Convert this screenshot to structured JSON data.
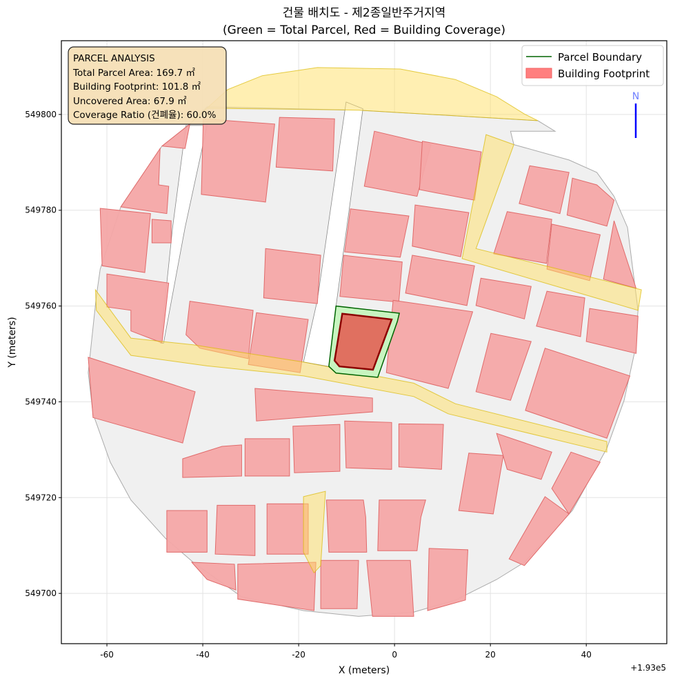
{
  "chart_data": {
    "type": "map",
    "title": "건물 배치도 - 제2종일반주거지역",
    "subtitle": "(Green = Total Parcel, Red = Building Coverage)",
    "xlabel": "X (meters)",
    "ylabel": "Y (meters)",
    "x_offset_label": "+1.93e5",
    "xlim": [
      -69.5,
      56.8
    ],
    "ylim": [
      549689.5,
      549815.4
    ],
    "xticks": [
      -60,
      -40,
      -20,
      0,
      20,
      40
    ],
    "yticks": [
      549700,
      549720,
      549740,
      549760,
      549780,
      549800
    ],
    "grid": true,
    "colors": {
      "parcel_fill": "#c8f5c0",
      "parcel_edge": "#006400",
      "building_fill": "#e07060",
      "building_edge": "#8b0000",
      "context_building": "#f4a6a6",
      "context_edge": "#e06a6a",
      "ground": "#f0f0f0",
      "road": "#fff1a8",
      "north_arrow": "#0000ff"
    },
    "legend": {
      "placement": "upper-right",
      "entries": [
        "Parcel Boundary",
        "Building Footprint"
      ]
    },
    "north_label": "N",
    "info_box": {
      "placement": "upper-left",
      "lines": [
        "PARCEL ANALYSIS",
        "Total Parcel Area: 169.7 ㎡",
        "Building Footprint: 101.8 ㎡",
        "Uncovered Area: 67.9 ㎡",
        "Coverage Ratio (건폐율): 60.0%"
      ]
    },
    "target_parcel": [
      [
        -12.2,
        549760.0
      ],
      [
        1.0,
        549758.5
      ],
      [
        0.6,
        549756.8
      ],
      [
        -3.5,
        549745.1
      ],
      [
        -12.2,
        549746.0
      ],
      [
        -13.7,
        549747.4
      ]
    ],
    "target_building": [
      [
        -10.9,
        549758.4
      ],
      [
        -0.6,
        549757.2
      ],
      [
        -4.5,
        549746.7
      ],
      [
        -11.5,
        549747.4
      ],
      [
        -12.5,
        549748.6
      ]
    ],
    "ground": [
      [
        -63.9,
        549746.1
      ],
      [
        -62.2,
        549762.0
      ],
      [
        -61.4,
        549767.7
      ],
      [
        -57.1,
        549780.7
      ],
      [
        -48.5,
        549793.4
      ],
      [
        -42.7,
        549798.0
      ],
      [
        -39.1,
        549801.6
      ],
      [
        -7.5,
        549800.9
      ],
      [
        29.9,
        549798.7
      ],
      [
        33.5,
        549796.5
      ],
      [
        24.2,
        549796.5
      ],
      [
        24.9,
        549793.7
      ],
      [
        36.4,
        549790.5
      ],
      [
        42.2,
        549787.9
      ],
      [
        45.8,
        549782.9
      ],
      [
        48.6,
        549776.4
      ],
      [
        50.8,
        549759.1
      ],
      [
        50.1,
        549750.4
      ],
      [
        47.9,
        549740.3
      ],
      [
        44.3,
        549730.3
      ],
      [
        37.1,
        549717.3
      ],
      [
        27.1,
        549706.5
      ],
      [
        21.3,
        549702.9
      ],
      [
        12.7,
        549698.6
      ],
      [
        4.0,
        549696.1
      ],
      [
        -7.5,
        549695.2
      ],
      [
        -19.0,
        549696.4
      ],
      [
        -31.9,
        549699.3
      ],
      [
        -42.0,
        549706.5
      ],
      [
        -47.8,
        549711.5
      ],
      [
        -55.0,
        549719.5
      ],
      [
        -59.3,
        549727.4
      ],
      [
        -62.9,
        549737.5
      ]
    ],
    "roads": [
      [
        [
          -42.0,
          549798.7
        ],
        [
          -34.8,
          549805.2
        ],
        [
          -27.6,
          549808.1
        ],
        [
          -16.1,
          549809.8
        ],
        [
          1.2,
          549809.5
        ],
        [
          12.7,
          549807.3
        ],
        [
          21.3,
          549803.7
        ],
        [
          27.1,
          549800.1
        ],
        [
          29.9,
          549798.7
        ],
        [
          -7.5,
          549800.9
        ],
        [
          -39.1,
          549801.3
        ]
      ],
      [
        [
          -62.4,
          549763.4
        ],
        [
          -55.0,
          549753.3
        ],
        [
          -42.0,
          549751.9
        ],
        [
          -19.0,
          549748.3
        ],
        [
          4.0,
          549743.9
        ],
        [
          12.7,
          549739.6
        ],
        [
          44.3,
          549731.7
        ],
        [
          44.3,
          549729.5
        ],
        [
          11.2,
          549737.5
        ],
        [
          4.0,
          549741.1
        ],
        [
          -19.0,
          549745.4
        ],
        [
          -39.1,
          549747.5
        ],
        [
          -55.0,
          549749.7
        ],
        [
          -62.2,
          549759.1
        ]
      ],
      [
        [
          19.1,
          549795.8
        ],
        [
          24.9,
          549793.7
        ],
        [
          17.0,
          549772.0
        ],
        [
          51.5,
          549763.4
        ],
        [
          50.8,
          549759.1
        ],
        [
          14.1,
          549769.9
        ]
      ],
      [
        [
          -19.0,
          549720.2
        ],
        [
          -14.4,
          549721.3
        ],
        [
          -15.4,
          549705.8
        ],
        [
          -16.8,
          549704.3
        ],
        [
          -19.0,
          549708.6
        ]
      ]
    ],
    "open_strips": [
      [
        [
          -43.5,
          549797.7
        ],
        [
          -39.1,
          549797.7
        ],
        [
          -43.7,
          549776.4
        ],
        [
          -48.2,
          549752.2
        ],
        [
          -48.8,
          549752.3
        ],
        [
          -46.3,
          549776.4
        ]
      ],
      [
        [
          -10.1,
          549802.6
        ],
        [
          -6.6,
          549801.2
        ],
        [
          -12.2,
          549760.0
        ],
        [
          -13.7,
          549747.4
        ],
        [
          -19.0,
          549748.3
        ],
        [
          -16.1,
          549761.2
        ]
      ]
    ],
    "buildings": [
      [
        [
          -39.9,
          549799.1
        ],
        [
          -25.0,
          549798.0
        ],
        [
          -26.9,
          549781.7
        ],
        [
          -40.3,
          549783.3
        ]
      ],
      [
        [
          -24.0,
          549799.4
        ],
        [
          -12.5,
          549799.1
        ],
        [
          -12.9,
          549788.2
        ],
        [
          -24.7,
          549789.0
        ]
      ],
      [
        [
          -4.2,
          549796.5
        ],
        [
          7.6,
          549793.7
        ],
        [
          4.7,
          549782.9
        ],
        [
          -6.3,
          549785.0
        ]
      ],
      [
        [
          5.8,
          549794.4
        ],
        [
          18.1,
          549792.2
        ],
        [
          16.7,
          549782.1
        ],
        [
          5.2,
          549784.3
        ]
      ],
      [
        [
          -9.2,
          549780.3
        ],
        [
          3.0,
          549778.8
        ],
        [
          1.2,
          549770.2
        ],
        [
          -10.4,
          549771.3
        ]
      ],
      [
        [
          4.3,
          549781.1
        ],
        [
          15.5,
          549779.5
        ],
        [
          13.8,
          549770.3
        ],
        [
          3.7,
          549772.5
        ]
      ],
      [
        [
          -26.9,
          549772.0
        ],
        [
          -15.4,
          549770.6
        ],
        [
          -16.1,
          549760.5
        ],
        [
          -27.3,
          549761.7
        ]
      ],
      [
        [
          -10.6,
          549770.6
        ],
        [
          1.6,
          549769.2
        ],
        [
          0.9,
          549760.8
        ],
        [
          -11.4,
          549762.0
        ]
      ],
      [
        [
          3.7,
          549770.6
        ],
        [
          16.7,
          549768.4
        ],
        [
          15.1,
          549760.1
        ],
        [
          2.3,
          549762.7
        ]
      ],
      [
        [
          -0.3,
          549761.2
        ],
        [
          16.3,
          549758.8
        ],
        [
          11.2,
          549742.8
        ],
        [
          -1.7,
          549746.1
        ]
      ],
      [
        [
          -42.7,
          549761.0
        ],
        [
          -29.5,
          549759.1
        ],
        [
          -30.5,
          549749.0
        ],
        [
          -40.6,
          549751.2
        ],
        [
          -43.5,
          549754.0
        ]
      ],
      [
        [
          -28.8,
          549758.6
        ],
        [
          -18.0,
          549757.2
        ],
        [
          -19.7,
          549746.1
        ],
        [
          -30.5,
          549747.8
        ]
      ],
      [
        [
          -60.0,
          549766.7
        ],
        [
          -47.1,
          549764.8
        ],
        [
          -48.5,
          549752.3
        ],
        [
          -55.0,
          549754.8
        ],
        [
          -55.0,
          549759.1
        ],
        [
          -60.0,
          549759.8
        ]
      ],
      [
        [
          -61.4,
          549780.4
        ],
        [
          -50.9,
          549779.3
        ],
        [
          -52.1,
          549767.0
        ],
        [
          -61.0,
          549768.4
        ]
      ],
      [
        [
          -50.6,
          549778.1
        ],
        [
          -46.6,
          549777.8
        ],
        [
          -46.6,
          549773.2
        ],
        [
          -50.6,
          549773.2
        ]
      ],
      [
        [
          -57.1,
          549780.7
        ],
        [
          -48.9,
          549792.9
        ],
        [
          -49.2,
          549785.3
        ],
        [
          -47.1,
          549785.0
        ],
        [
          -47.5,
          549779.3
        ]
      ],
      [
        [
          -63.9,
          549749.3
        ],
        [
          -41.6,
          549742.1
        ],
        [
          -44.2,
          549731.4
        ],
        [
          -62.9,
          549736.7
        ]
      ],
      [
        [
          -29.1,
          549742.8
        ],
        [
          -4.6,
          549740.8
        ],
        [
          -4.6,
          549737.9
        ],
        [
          -28.8,
          549736.0
        ]
      ],
      [
        [
          -21.2,
          549734.9
        ],
        [
          -11.4,
          549735.3
        ],
        [
          -11.4,
          549725.5
        ],
        [
          -20.9,
          549725.2
        ]
      ],
      [
        [
          -31.2,
          549732.3
        ],
        [
          -21.9,
          549732.3
        ],
        [
          -21.9,
          549724.5
        ],
        [
          -31.2,
          549724.5
        ]
      ],
      [
        [
          -10.4,
          549736.0
        ],
        [
          -0.6,
          549735.7
        ],
        [
          -0.6,
          549725.9
        ],
        [
          -10.1,
          549726.2
        ]
      ],
      [
        [
          0.9,
          549735.4
        ],
        [
          10.2,
          549735.3
        ],
        [
          9.8,
          549725.9
        ],
        [
          0.9,
          549726.4
        ]
      ],
      [
        [
          -44.2,
          549728.1
        ],
        [
          -36.0,
          549730.7
        ],
        [
          -31.9,
          549731.0
        ],
        [
          -31.9,
          549724.5
        ],
        [
          -44.2,
          549724.2
        ]
      ],
      [
        [
          -47.5,
          549717.3
        ],
        [
          -39.1,
          549717.3
        ],
        [
          -39.1,
          549708.6
        ],
        [
          -47.5,
          549708.6
        ]
      ],
      [
        [
          -37.0,
          549718.4
        ],
        [
          -29.1,
          549718.4
        ],
        [
          -29.1,
          549707.9
        ],
        [
          -37.4,
          549708.2
        ]
      ],
      [
        [
          -26.6,
          549718.7
        ],
        [
          -18.0,
          549718.7
        ],
        [
          -18.0,
          549708.2
        ],
        [
          -26.6,
          549708.2
        ]
      ],
      [
        [
          -14.2,
          549719.5
        ],
        [
          -6.5,
          549719.5
        ],
        [
          -6.0,
          549715.9
        ],
        [
          -5.8,
          549708.6
        ],
        [
          -13.7,
          549708.6
        ]
      ],
      [
        [
          -3.2,
          549719.5
        ],
        [
          6.5,
          549719.5
        ],
        [
          5.5,
          549715.9
        ],
        [
          4.7,
          549708.9
        ],
        [
          -3.5,
          549708.9
        ]
      ],
      [
        [
          -42.3,
          549706.5
        ],
        [
          -33.4,
          549706.1
        ],
        [
          -33.1,
          549700.7
        ],
        [
          -39.1,
          549702.9
        ]
      ],
      [
        [
          -32.7,
          549706.1
        ],
        [
          -16.4,
          549706.5
        ],
        [
          -16.8,
          549696.4
        ],
        [
          -32.7,
          549698.8
        ]
      ],
      [
        [
          -15.4,
          549706.9
        ],
        [
          -7.5,
          549706.9
        ],
        [
          -7.8,
          549696.8
        ],
        [
          -15.4,
          549696.8
        ]
      ],
      [
        [
          -5.8,
          549706.9
        ],
        [
          3.3,
          549706.9
        ],
        [
          4.0,
          549695.2
        ],
        [
          -4.6,
          549695.2
        ]
      ],
      [
        [
          7.2,
          549709.4
        ],
        [
          15.3,
          549709.1
        ],
        [
          14.8,
          549698.6
        ],
        [
          6.9,
          549696.4
        ]
      ],
      [
        [
          15.5,
          549729.3
        ],
        [
          22.7,
          549728.8
        ],
        [
          20.6,
          549716.6
        ],
        [
          13.4,
          549717.3
        ]
      ],
      [
        [
          21.3,
          549733.4
        ],
        [
          32.8,
          549729.5
        ],
        [
          30.6,
          549723.8
        ],
        [
          23.5,
          549725.9
        ]
      ],
      [
        [
          36.8,
          549729.5
        ],
        [
          42.9,
          549727.4
        ],
        [
          36.4,
          549716.6
        ],
        [
          32.8,
          549721.9
        ]
      ],
      [
        [
          31.4,
          549720.2
        ],
        [
          36.4,
          549716.6
        ],
        [
          27.1,
          549705.8
        ],
        [
          23.9,
          549707.2
        ]
      ],
      [
        [
          20.1,
          549754.3
        ],
        [
          28.5,
          549752.6
        ],
        [
          24.2,
          549740.3
        ],
        [
          17.0,
          549742.1
        ]
      ],
      [
        [
          31.4,
          549751.2
        ],
        [
          49.1,
          549745.4
        ],
        [
          44.3,
          549732.4
        ],
        [
          27.3,
          549738.2
        ]
      ],
      [
        [
          18.0,
          549765.8
        ],
        [
          28.5,
          549764.1
        ],
        [
          27.1,
          549757.3
        ],
        [
          17.0,
          549760.1
        ]
      ],
      [
        [
          31.8,
          549763.1
        ],
        [
          39.7,
          549761.7
        ],
        [
          38.8,
          549753.6
        ],
        [
          29.6,
          549755.8
        ]
      ],
      [
        [
          40.7,
          549759.5
        ],
        [
          50.8,
          549757.9
        ],
        [
          50.4,
          549750.1
        ],
        [
          40.0,
          549752.6
        ]
      ],
      [
        [
          45.8,
          549777.8
        ],
        [
          50.4,
          549763.7
        ],
        [
          43.6,
          549765.6
        ]
      ],
      [
        [
          23.5,
          549779.7
        ],
        [
          32.8,
          549778.1
        ],
        [
          31.7,
          549768.9
        ],
        [
          20.7,
          549770.9
        ]
      ],
      [
        [
          32.8,
          549777.1
        ],
        [
          42.9,
          549774.9
        ],
        [
          40.7,
          549765.3
        ],
        [
          31.8,
          549767.7
        ]
      ],
      [
        [
          28.2,
          549789.3
        ],
        [
          36.4,
          549787.9
        ],
        [
          34.5,
          549779.3
        ],
        [
          26.0,
          549781.4
        ]
      ],
      [
        [
          37.1,
          549786.7
        ],
        [
          42.2,
          549785.3
        ],
        [
          45.8,
          549782.1
        ],
        [
          44.3,
          549776.7
        ],
        [
          36.0,
          549779.0
        ]
      ],
      [
        [
          -48.5,
          549793.4
        ],
        [
          -42.7,
          549798.0
        ],
        [
          -43.7,
          549792.9
        ]
      ]
    ]
  }
}
